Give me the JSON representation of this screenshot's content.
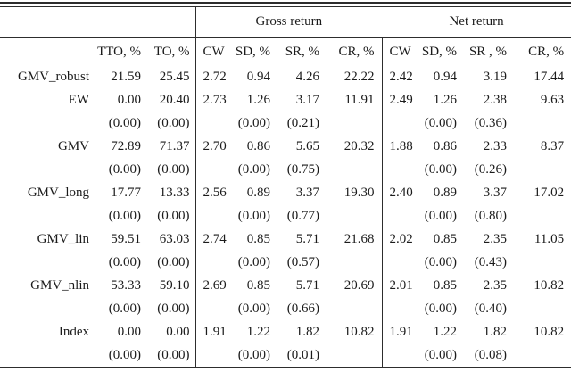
{
  "meta": {
    "background": "#ffffff",
    "text_color": "#1b1b1b",
    "rule_color": "#2d2d2d"
  },
  "table": {
    "gross_group_label": "Gross return",
    "net_group_label": "Net return",
    "column_headers": {
      "tto": "TTO, %",
      "to": "TO, %",
      "gross": {
        "cw": "CW",
        "sd": "SD, %",
        "sr": "SR, %",
        "cr": "CR, %"
      },
      "net": {
        "cw": "CW",
        "sd": "SD, %",
        "sr": "SR , %",
        "cr": "CR, %"
      }
    },
    "rows": [
      {
        "label": "GMV_robust",
        "values": [
          "21.59",
          "25.45",
          "2.72",
          "0.94",
          "4.26",
          "22.22",
          "2.42",
          "0.94",
          "3.19",
          "17.44"
        ],
        "se": null
      },
      {
        "label": "EW",
        "values": [
          "0.00",
          "20.40",
          "2.73",
          "1.26",
          "3.17",
          "11.91",
          "2.49",
          "1.26",
          "2.38",
          "9.63"
        ],
        "se": [
          "(0.00)",
          "(0.00)",
          "",
          "(0.00)",
          "(0.21)",
          "",
          "",
          "(0.00)",
          "(0.36)",
          ""
        ]
      },
      {
        "label": "GMV",
        "values": [
          "72.89",
          "71.37",
          "2.70",
          "0.86",
          "5.65",
          "20.32",
          "1.88",
          "0.86",
          "2.33",
          "8.37"
        ],
        "se": [
          "(0.00)",
          "(0.00)",
          "",
          "(0.00)",
          "(0.75)",
          "",
          "",
          "(0.00)",
          "(0.26)",
          ""
        ]
      },
      {
        "label": "GMV_long",
        "values": [
          "17.77",
          "13.33",
          "2.56",
          "0.89",
          "3.37",
          "19.30",
          "2.40",
          "0.89",
          "3.37",
          "17.02"
        ],
        "se": [
          "(0.00)",
          "(0.00)",
          "",
          "(0.00)",
          "(0.77)",
          "",
          "",
          "(0.00)",
          "(0.80)",
          ""
        ]
      },
      {
        "label": "GMV_lin",
        "values": [
          "59.51",
          "63.03",
          "2.74",
          "0.85",
          "5.71",
          "21.68",
          "2.02",
          "0.85",
          "2.35",
          "11.05"
        ],
        "se": [
          "(0.00)",
          "(0.00)",
          "",
          "(0.00)",
          "(0.57)",
          "",
          "",
          "(0.00)",
          "(0.43)",
          ""
        ]
      },
      {
        "label": "GMV_nlin",
        "values": [
          "53.33",
          "59.10",
          "2.69",
          "0.85",
          "5.71",
          "20.69",
          "2.01",
          "0.85",
          "2.35",
          "10.82"
        ],
        "se": [
          "(0.00)",
          "(0.00)",
          "",
          "(0.00)",
          "(0.66)",
          "",
          "",
          "(0.00)",
          "(0.40)",
          ""
        ]
      },
      {
        "label": "Index",
        "values": [
          "0.00",
          "0.00",
          "1.91",
          "1.22",
          "1.82",
          "10.82",
          "1.91",
          "1.22",
          "1.82",
          "10.82"
        ],
        "se": [
          "(0.00)",
          "(0.00)",
          "",
          "(0.00)",
          "(0.01)",
          "",
          "",
          "(0.00)",
          "(0.08)",
          ""
        ]
      }
    ]
  }
}
